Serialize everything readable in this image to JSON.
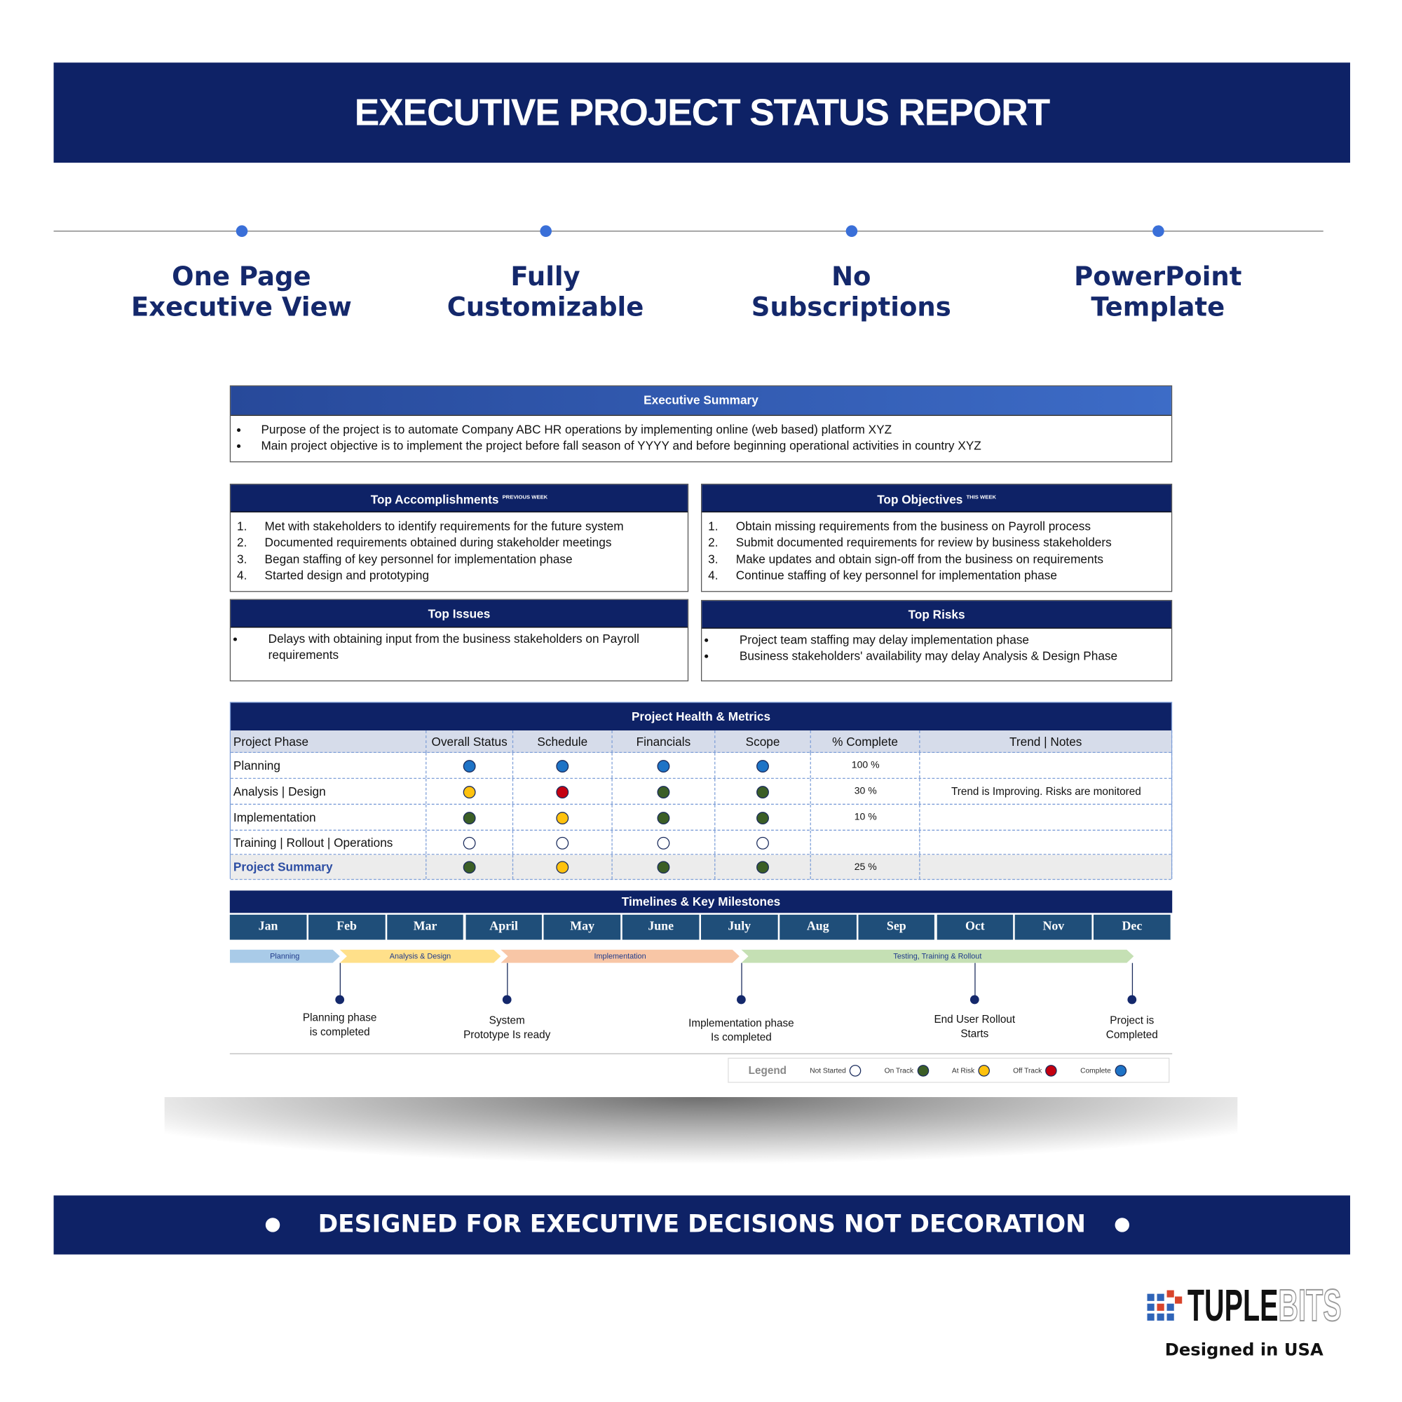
{
  "header": {
    "title": "EXECUTIVE PROJECT STATUS REPORT"
  },
  "features": [
    {
      "lines": [
        "One Page",
        "Executive View"
      ]
    },
    {
      "lines": [
        "Fully",
        "Customizable"
      ]
    },
    {
      "lines": [
        "No",
        "Subscriptions"
      ]
    },
    {
      "lines": [
        "PowerPoint",
        "Template"
      ]
    }
  ],
  "report": {
    "summary": {
      "title": "Executive Summary",
      "items": [
        "Purpose of the project is to automate Company ABC HR operations by implementing online (web based) platform XYZ",
        "Main project objective is to implement the project before fall season of YYYY and before beginning operational activities in country XYZ"
      ]
    },
    "accomplishments": {
      "title": "Top Accomplishments",
      "note": "PREVIOUS WEEK",
      "items": [
        "Met with stakeholders to identify requirements for the future system",
        "Documented requirements obtained during stakeholder meetings",
        "Began staffing of key personnel for implementation phase",
        "Started design and prototyping"
      ]
    },
    "objectives": {
      "title": "Top Objectives",
      "note": "THIS WEEK",
      "items": [
        "Obtain missing requirements from the business on Payroll process",
        "Submit documented requirements for review by business stakeholders",
        "Make updates and obtain sign-off from the business on requirements",
        "Continue staffing of key personnel for implementation phase"
      ]
    },
    "issues": {
      "title": "Top Issues",
      "items": [
        "Delays with obtaining input from the business stakeholders on Payroll requirements"
      ]
    },
    "risks": {
      "title": "Top Risks",
      "items": [
        "Project team staffing may delay implementation phase",
        "Business stakeholders' availability may delay Analysis & Design Phase"
      ]
    },
    "health": {
      "title": "Project Health & Metrics",
      "columns": [
        "Project Phase",
        "Overall Status",
        "Schedule",
        "Financials",
        "Scope",
        "% Complete",
        "Trend | Notes"
      ],
      "rows": [
        {
          "phase": "Planning",
          "statuses": [
            "Complete",
            "Complete",
            "Complete",
            "Complete"
          ],
          "complete": "100 %",
          "notes": null
        },
        {
          "phase": "Analysis | Design",
          "statuses": [
            "At Risk",
            "Off Track",
            "On Track",
            "On Track"
          ],
          "complete": "30 %",
          "notes": "Trend is Improving. Risks are monitored"
        },
        {
          "phase": "Implementation",
          "statuses": [
            "On Track",
            "At Risk",
            "On Track",
            "On Track"
          ],
          "complete": "10 %",
          "notes": null
        },
        {
          "phase": "Training | Rollout | Operations",
          "statuses": [
            "Not Started",
            "Not Started",
            "Not Started",
            "Not Started"
          ],
          "complete": null,
          "notes": null
        },
        {
          "phase": "Project Summary",
          "statuses": [
            "On Track",
            "At Risk",
            "On Track",
            "On Track"
          ],
          "complete": "25 %",
          "notes": null
        }
      ]
    },
    "timeline": {
      "title": "Timelines & Key Milestones",
      "months": [
        "Jan",
        "Feb",
        "Mar",
        "April",
        "May",
        "June",
        "July",
        "Aug",
        "Sep",
        "Oct",
        "Nov",
        "Dec"
      ],
      "phases": [
        {
          "label": "Planning",
          "color": "#a9cbe8"
        },
        {
          "label": "Analysis & Design",
          "color": "#ffe08a"
        },
        {
          "label": "Implementation",
          "color": "#f8c6a6"
        },
        {
          "label": "Testing, Training & Rollout",
          "color": "#c5e0b4"
        }
      ],
      "milestones": [
        {
          "lines": [
            "Planning phase",
            "is completed"
          ]
        },
        {
          "lines": [
            "System",
            "Prototype Is ready"
          ]
        },
        {
          "lines": [
            "Implementation  phase",
            "Is completed"
          ]
        },
        {
          "lines": [
            "End User Rollout",
            "Starts"
          ]
        },
        {
          "lines": [
            "Project is",
            "Completed"
          ]
        }
      ]
    },
    "legend": {
      "title": "Legend",
      "items": [
        {
          "label": "Not Started",
          "color": "#ffffff"
        },
        {
          "label": "On Track",
          "color": "#3b5e26"
        },
        {
          "label": "At Risk",
          "color": "#ffc20e"
        },
        {
          "label": "Off Track",
          "color": "#c40010"
        },
        {
          "label": "Complete",
          "color": "#1e73c6"
        }
      ]
    }
  },
  "banner": {
    "text": "DESIGNED FOR EXECUTIVE DECISIONS NOT DECORATION"
  },
  "logo": {
    "name": "TUPLE",
    "name_suffix": "BITS",
    "tagline": "Designed in USA"
  }
}
